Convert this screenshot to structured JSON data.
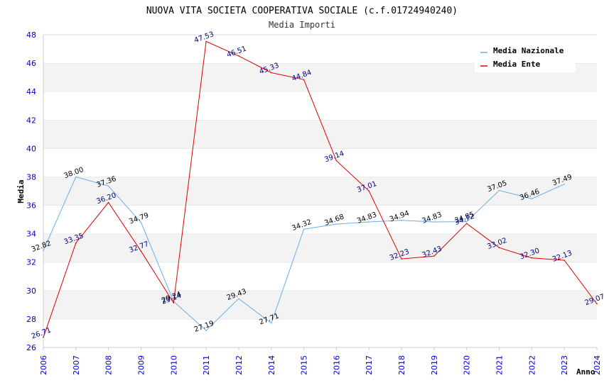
{
  "chart_data": {
    "type": "line",
    "title": "NUOVA VITA SOCIETA COOPERATIVA SOCIALE (c.f.01724940240)",
    "subtitle": "Media Importi",
    "xlabel": "Anno",
    "ylabel": "Media",
    "ylim": [
      26,
      48
    ],
    "yticks": [
      "26",
      "28",
      "30",
      "32",
      "34",
      "36",
      "38",
      "40",
      "42",
      "44",
      "46",
      "48"
    ],
    "categories": [
      "2006",
      "2007",
      "2008",
      "2009",
      "2010",
      "2011",
      "2012",
      "2014",
      "2015",
      "2016",
      "2017",
      "2018",
      "2019",
      "2020",
      "2021",
      "2022",
      "2023",
      "2024"
    ],
    "grid": "horizontal bands",
    "legend_position": "top-right",
    "series": [
      {
        "name": "Media Nazionale",
        "color": "#6aaee8",
        "label_color": "#000000",
        "values": [
          32.82,
          38.0,
          37.36,
          34.79,
          29.24,
          27.19,
          29.43,
          27.71,
          34.32,
          34.68,
          34.83,
          34.94,
          34.83,
          34.85,
          37.05,
          36.46,
          37.49,
          null
        ],
        "labels": [
          "32.82",
          "38.00",
          "37.36",
          "34.79",
          "29.24",
          "27.19",
          "29.43",
          "27.71",
          "34.32",
          "34.68",
          "34.83",
          "34.94",
          "34.83",
          "34.85",
          "37.05",
          "36.46",
          "37.49",
          ""
        ]
      },
      {
        "name": "Media Ente",
        "color": "#e00000",
        "label_color": "#000080",
        "values": [
          26.71,
          33.35,
          36.2,
          32.77,
          29.14,
          47.53,
          46.51,
          45.33,
          44.84,
          39.14,
          37.01,
          32.23,
          32.43,
          34.72,
          33.02,
          32.3,
          32.13,
          29.07
        ],
        "labels": [
          "26.71",
          "33.35",
          "36.20",
          "32.77",
          "29.14",
          "47.53",
          "46.51",
          "45.33",
          "44.84",
          "39.14",
          "37.01",
          "32.23",
          "32.43",
          "34.72",
          "33.02",
          "32.30",
          "32.13",
          "29.07"
        ]
      }
    ]
  }
}
